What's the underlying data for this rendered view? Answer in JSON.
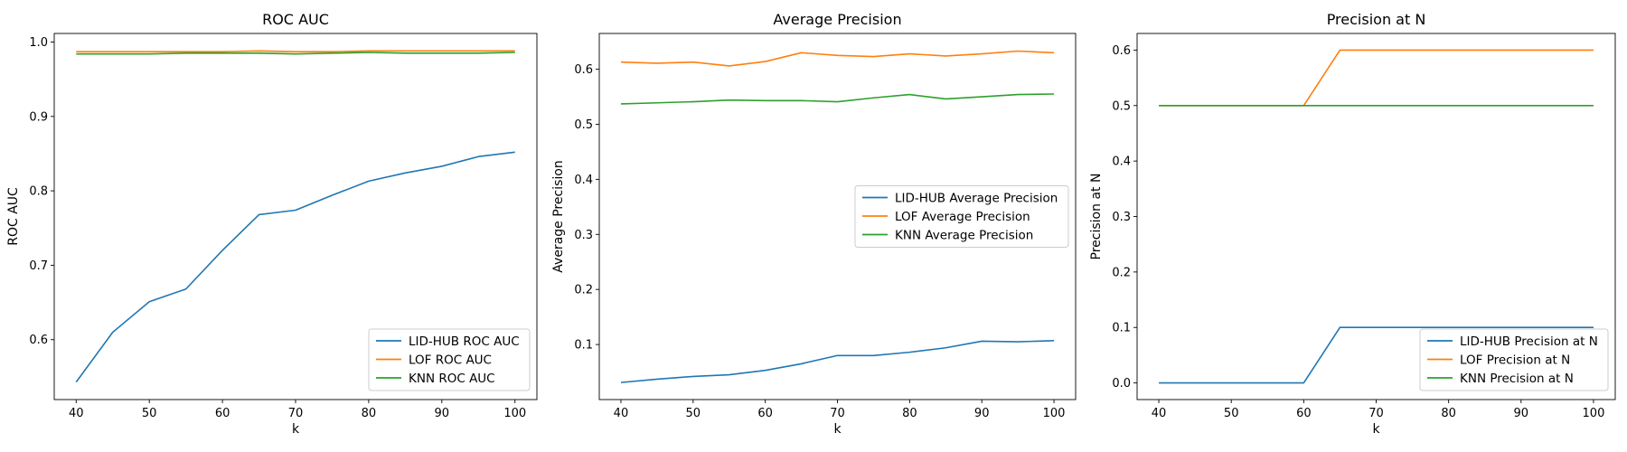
{
  "chart_data": [
    {
      "type": "line",
      "title": "ROC AUC",
      "xlabel": "k",
      "ylabel": "ROC AUC",
      "xlim": [
        37,
        103
      ],
      "ylim": [
        0.5195,
        1.0115
      ],
      "xticks": [
        40,
        50,
        60,
        70,
        80,
        90,
        100
      ],
      "yticks": [
        0.6,
        0.7,
        0.8,
        0.9,
        1.0
      ],
      "ytick_labels": [
        "0.6",
        "0.7",
        "0.8",
        "0.9",
        "1.0"
      ],
      "legend_position": "lower-right",
      "x": [
        40,
        45,
        50,
        55,
        60,
        65,
        70,
        75,
        80,
        85,
        90,
        95,
        100
      ],
      "series": [
        {
          "name": "LID-HUB ROC AUC",
          "color": "#1f77b4",
          "values": [
            0.543,
            0.61,
            0.651,
            0.668,
            0.72,
            0.768,
            0.774,
            0.794,
            0.813,
            0.824,
            0.833,
            0.846,
            0.852
          ]
        },
        {
          "name": "LOF ROC AUC",
          "color": "#ff7f0e",
          "values": [
            0.987,
            0.987,
            0.987,
            0.987,
            0.987,
            0.988,
            0.987,
            0.987,
            0.988,
            0.988,
            0.988,
            0.988,
            0.988
          ]
        },
        {
          "name": "KNN ROC AUC",
          "color": "#2ca02c",
          "values": [
            0.984,
            0.984,
            0.984,
            0.985,
            0.985,
            0.985,
            0.984,
            0.985,
            0.986,
            0.985,
            0.985,
            0.985,
            0.986
          ]
        }
      ]
    },
    {
      "type": "line",
      "title": "Average Precision",
      "xlabel": "k",
      "ylabel": "Average Precision",
      "xlim": [
        37,
        103
      ],
      "ylim": [
        0.0,
        0.665
      ],
      "xticks": [
        40,
        50,
        60,
        70,
        80,
        90,
        100
      ],
      "yticks": [
        0.1,
        0.2,
        0.3,
        0.4,
        0.5,
        0.6
      ],
      "ytick_labels": [
        "0.1",
        "0.2",
        "0.3",
        "0.4",
        "0.5",
        "0.6"
      ],
      "legend_position": "center-right",
      "x": [
        40,
        45,
        50,
        55,
        60,
        65,
        70,
        75,
        80,
        85,
        90,
        95,
        100
      ],
      "series": [
        {
          "name": "LID-HUB Average Precision",
          "color": "#1f77b4",
          "values": [
            0.031,
            0.037,
            0.042,
            0.045,
            0.053,
            0.065,
            0.08,
            0.08,
            0.086,
            0.094,
            0.106,
            0.105,
            0.107
          ]
        },
        {
          "name": "LOF Average Precision",
          "color": "#ff7f0e",
          "values": [
            0.613,
            0.611,
            0.613,
            0.606,
            0.614,
            0.63,
            0.625,
            0.623,
            0.628,
            0.624,
            0.628,
            0.633,
            0.63
          ]
        },
        {
          "name": "KNN Average Precision",
          "color": "#2ca02c",
          "values": [
            0.537,
            0.539,
            0.541,
            0.544,
            0.543,
            0.543,
            0.541,
            0.548,
            0.554,
            0.546,
            0.55,
            0.554,
            0.555
          ]
        }
      ]
    },
    {
      "type": "line",
      "title": "Precision at N",
      "xlabel": "k",
      "ylabel": "Precision at N",
      "xlim": [
        37,
        103
      ],
      "ylim": [
        -0.03,
        0.63
      ],
      "xticks": [
        40,
        50,
        60,
        70,
        80,
        90,
        100
      ],
      "yticks": [
        0.0,
        0.1,
        0.2,
        0.3,
        0.4,
        0.5,
        0.6
      ],
      "ytick_labels": [
        "0.0",
        "0.1",
        "0.2",
        "0.3",
        "0.4",
        "0.5",
        "0.6"
      ],
      "legend_position": "lower-right",
      "x": [
        40,
        45,
        50,
        55,
        60,
        65,
        70,
        75,
        80,
        85,
        90,
        95,
        100
      ],
      "series": [
        {
          "name": "LID-HUB Precision at N",
          "color": "#1f77b4",
          "values": [
            0.0,
            0.0,
            0.0,
            0.0,
            0.0,
            0.1,
            0.1,
            0.1,
            0.1,
            0.1,
            0.1,
            0.1,
            0.1
          ]
        },
        {
          "name": "LOF Precision at N",
          "color": "#ff7f0e",
          "values": [
            0.5,
            0.5,
            0.5,
            0.5,
            0.5,
            0.6,
            0.6,
            0.6,
            0.6,
            0.6,
            0.6,
            0.6,
            0.6
          ]
        },
        {
          "name": "KNN Precision at N",
          "color": "#2ca02c",
          "values": [
            0.5,
            0.5,
            0.5,
            0.5,
            0.5,
            0.5,
            0.5,
            0.5,
            0.5,
            0.5,
            0.5,
            0.5,
            0.5
          ]
        }
      ]
    }
  ]
}
